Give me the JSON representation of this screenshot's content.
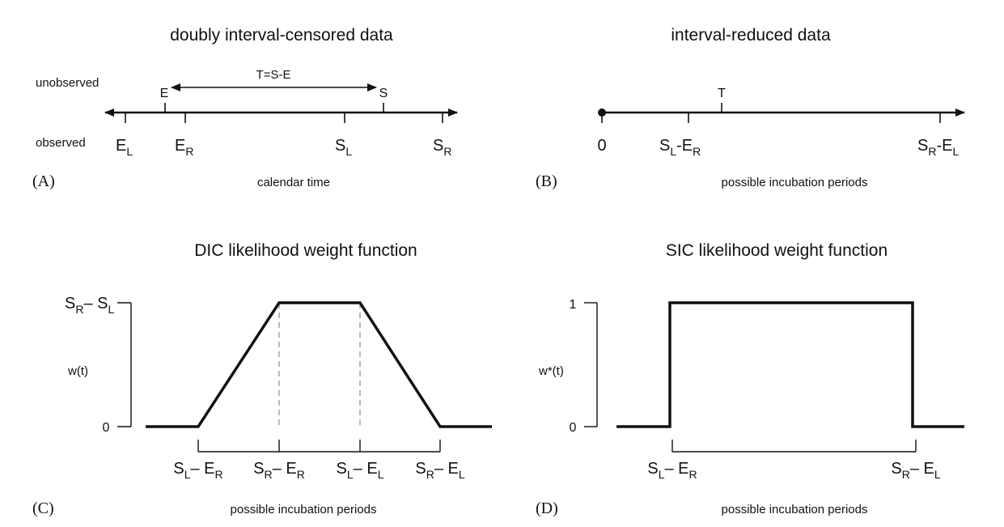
{
  "panelA": {
    "title": "doubly interval-censored data",
    "letter": "(A)",
    "row_unobserved": "unobserved",
    "row_observed": "observed",
    "xlabel": "calendar time",
    "E": "E",
    "S": "S",
    "T_label": "T=S-E",
    "EL": {
      "main": "E",
      "sub": "L"
    },
    "ER": {
      "main": "E",
      "sub": "R"
    },
    "SL": {
      "main": "S",
      "sub": "L"
    },
    "SR": {
      "main": "S",
      "sub": "R"
    }
  },
  "panelB": {
    "title": "interval-reduced data",
    "letter": "(B)",
    "xlabel": "possible incubation periods",
    "zero": "0",
    "T": "T",
    "left": {
      "a": "S",
      "a_sub": "L",
      "b": "-E",
      "b_sub": "R"
    },
    "right": {
      "a": "S",
      "a_sub": "R",
      "b": "-E",
      "b_sub": "L"
    }
  },
  "panelC": {
    "title": "DIC likelihood weight function",
    "letter": "(C)",
    "xlabel": "possible incubation periods",
    "ylabel": "w(t)",
    "y_top": {
      "a": "S",
      "a_sub": "R",
      "b": "– S",
      "b_sub": "L"
    },
    "y_zero": "0",
    "ticks": [
      {
        "a": "S",
        "a_sub": "L",
        "b": "– E",
        "b_sub": "R"
      },
      {
        "a": "S",
        "a_sub": "R",
        "b": "– E",
        "b_sub": "R"
      },
      {
        "a": "S",
        "a_sub": "L",
        "b": "– E",
        "b_sub": "L"
      },
      {
        "a": "S",
        "a_sub": "R",
        "b": "– E",
        "b_sub": "L"
      }
    ]
  },
  "panelD": {
    "title": "SIC likelihood weight function",
    "letter": "(D)",
    "xlabel": "possible incubation periods",
    "ylabel": "w*(t)",
    "y_top": "1",
    "y_zero": "0",
    "ticks": [
      {
        "a": "S",
        "a_sub": "L",
        "b": "– E",
        "b_sub": "R"
      },
      {
        "a": "S",
        "a_sub": "R",
        "b": "– E",
        "b_sub": "L"
      }
    ]
  },
  "colors": {
    "ink": "#111111",
    "dashed_guides": "#aaaaaa"
  }
}
